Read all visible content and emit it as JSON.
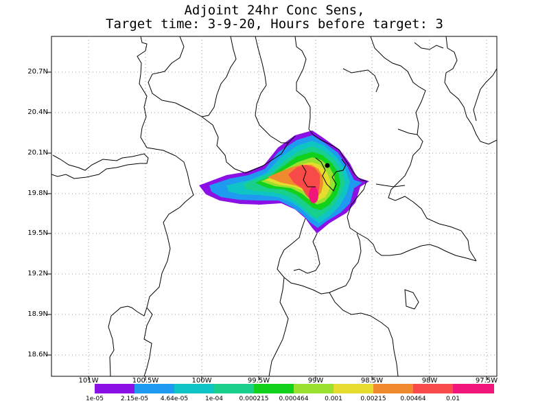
{
  "title": {
    "line1": "Adjoint 24hr Conc Sens,",
    "line2": "Target time: 3-9-20, Hours before target: 3"
  },
  "map": {
    "y_ticks": [
      "20.7N",
      "20.4N",
      "20.1N",
      "19.8N",
      "19.5N",
      "19.2N",
      "18.9N",
      "18.6N"
    ],
    "x_ticks": [
      "101W",
      "100.5W",
      "100W",
      "99.5W",
      "99W",
      "98.5W",
      "98W",
      "97.5W"
    ],
    "grid": true,
    "target_marker": "black-dot"
  },
  "colorbar": {
    "labels": [
      "1e-05",
      "2.15e-05",
      "4.64e-05",
      "1e-04",
      "0.000215",
      "0.000464",
      "0.001",
      "0.00215",
      "0.00464",
      "0.01"
    ],
    "colors": [
      "#8a10e6",
      "#1e9bf0",
      "#0fc4c4",
      "#18d08c",
      "#11d11c",
      "#9ae02e",
      "#e6dc2e",
      "#f08a2e",
      "#f84a48",
      "#f0167a"
    ]
  }
}
